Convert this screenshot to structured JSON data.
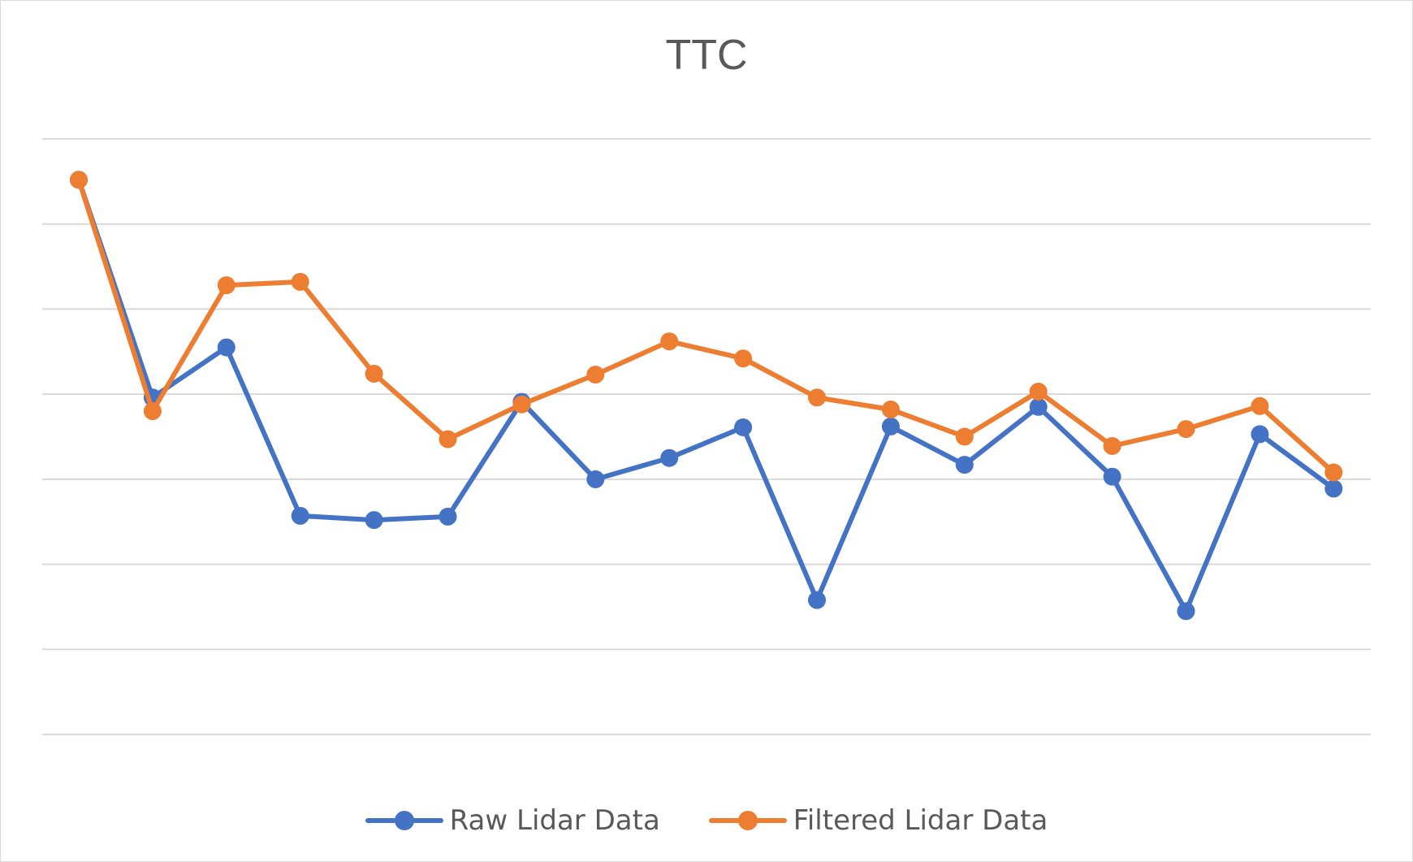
{
  "chart_data": {
    "type": "line",
    "title": "TTC",
    "xlabel": "",
    "ylabel": "",
    "x": [
      1,
      2,
      3,
      4,
      5,
      6,
      7,
      8,
      9,
      10,
      11,
      12,
      13,
      14,
      15,
      16,
      17,
      18
    ],
    "ylim": [
      0,
      7
    ],
    "y_gridlines": [
      0,
      1,
      2,
      3,
      4,
      5,
      6,
      7
    ],
    "grid": true,
    "legend_position": "bottom",
    "series": [
      {
        "name": "Raw Lidar Data",
        "color": "#4472c4",
        "values": [
          6.52,
          3.96,
          4.55,
          2.57,
          2.52,
          2.56,
          3.91,
          3.0,
          3.25,
          3.61,
          1.58,
          3.62,
          3.17,
          3.85,
          3.03,
          1.45,
          3.53,
          2.89
        ]
      },
      {
        "name": "Filtered Lidar Data",
        "color": "#ed7d31",
        "values": [
          6.52,
          3.8,
          5.28,
          5.32,
          4.24,
          3.47,
          3.88,
          4.23,
          4.62,
          4.42,
          3.96,
          3.82,
          3.5,
          4.03,
          3.39,
          3.59,
          3.86,
          3.08
        ]
      }
    ]
  }
}
